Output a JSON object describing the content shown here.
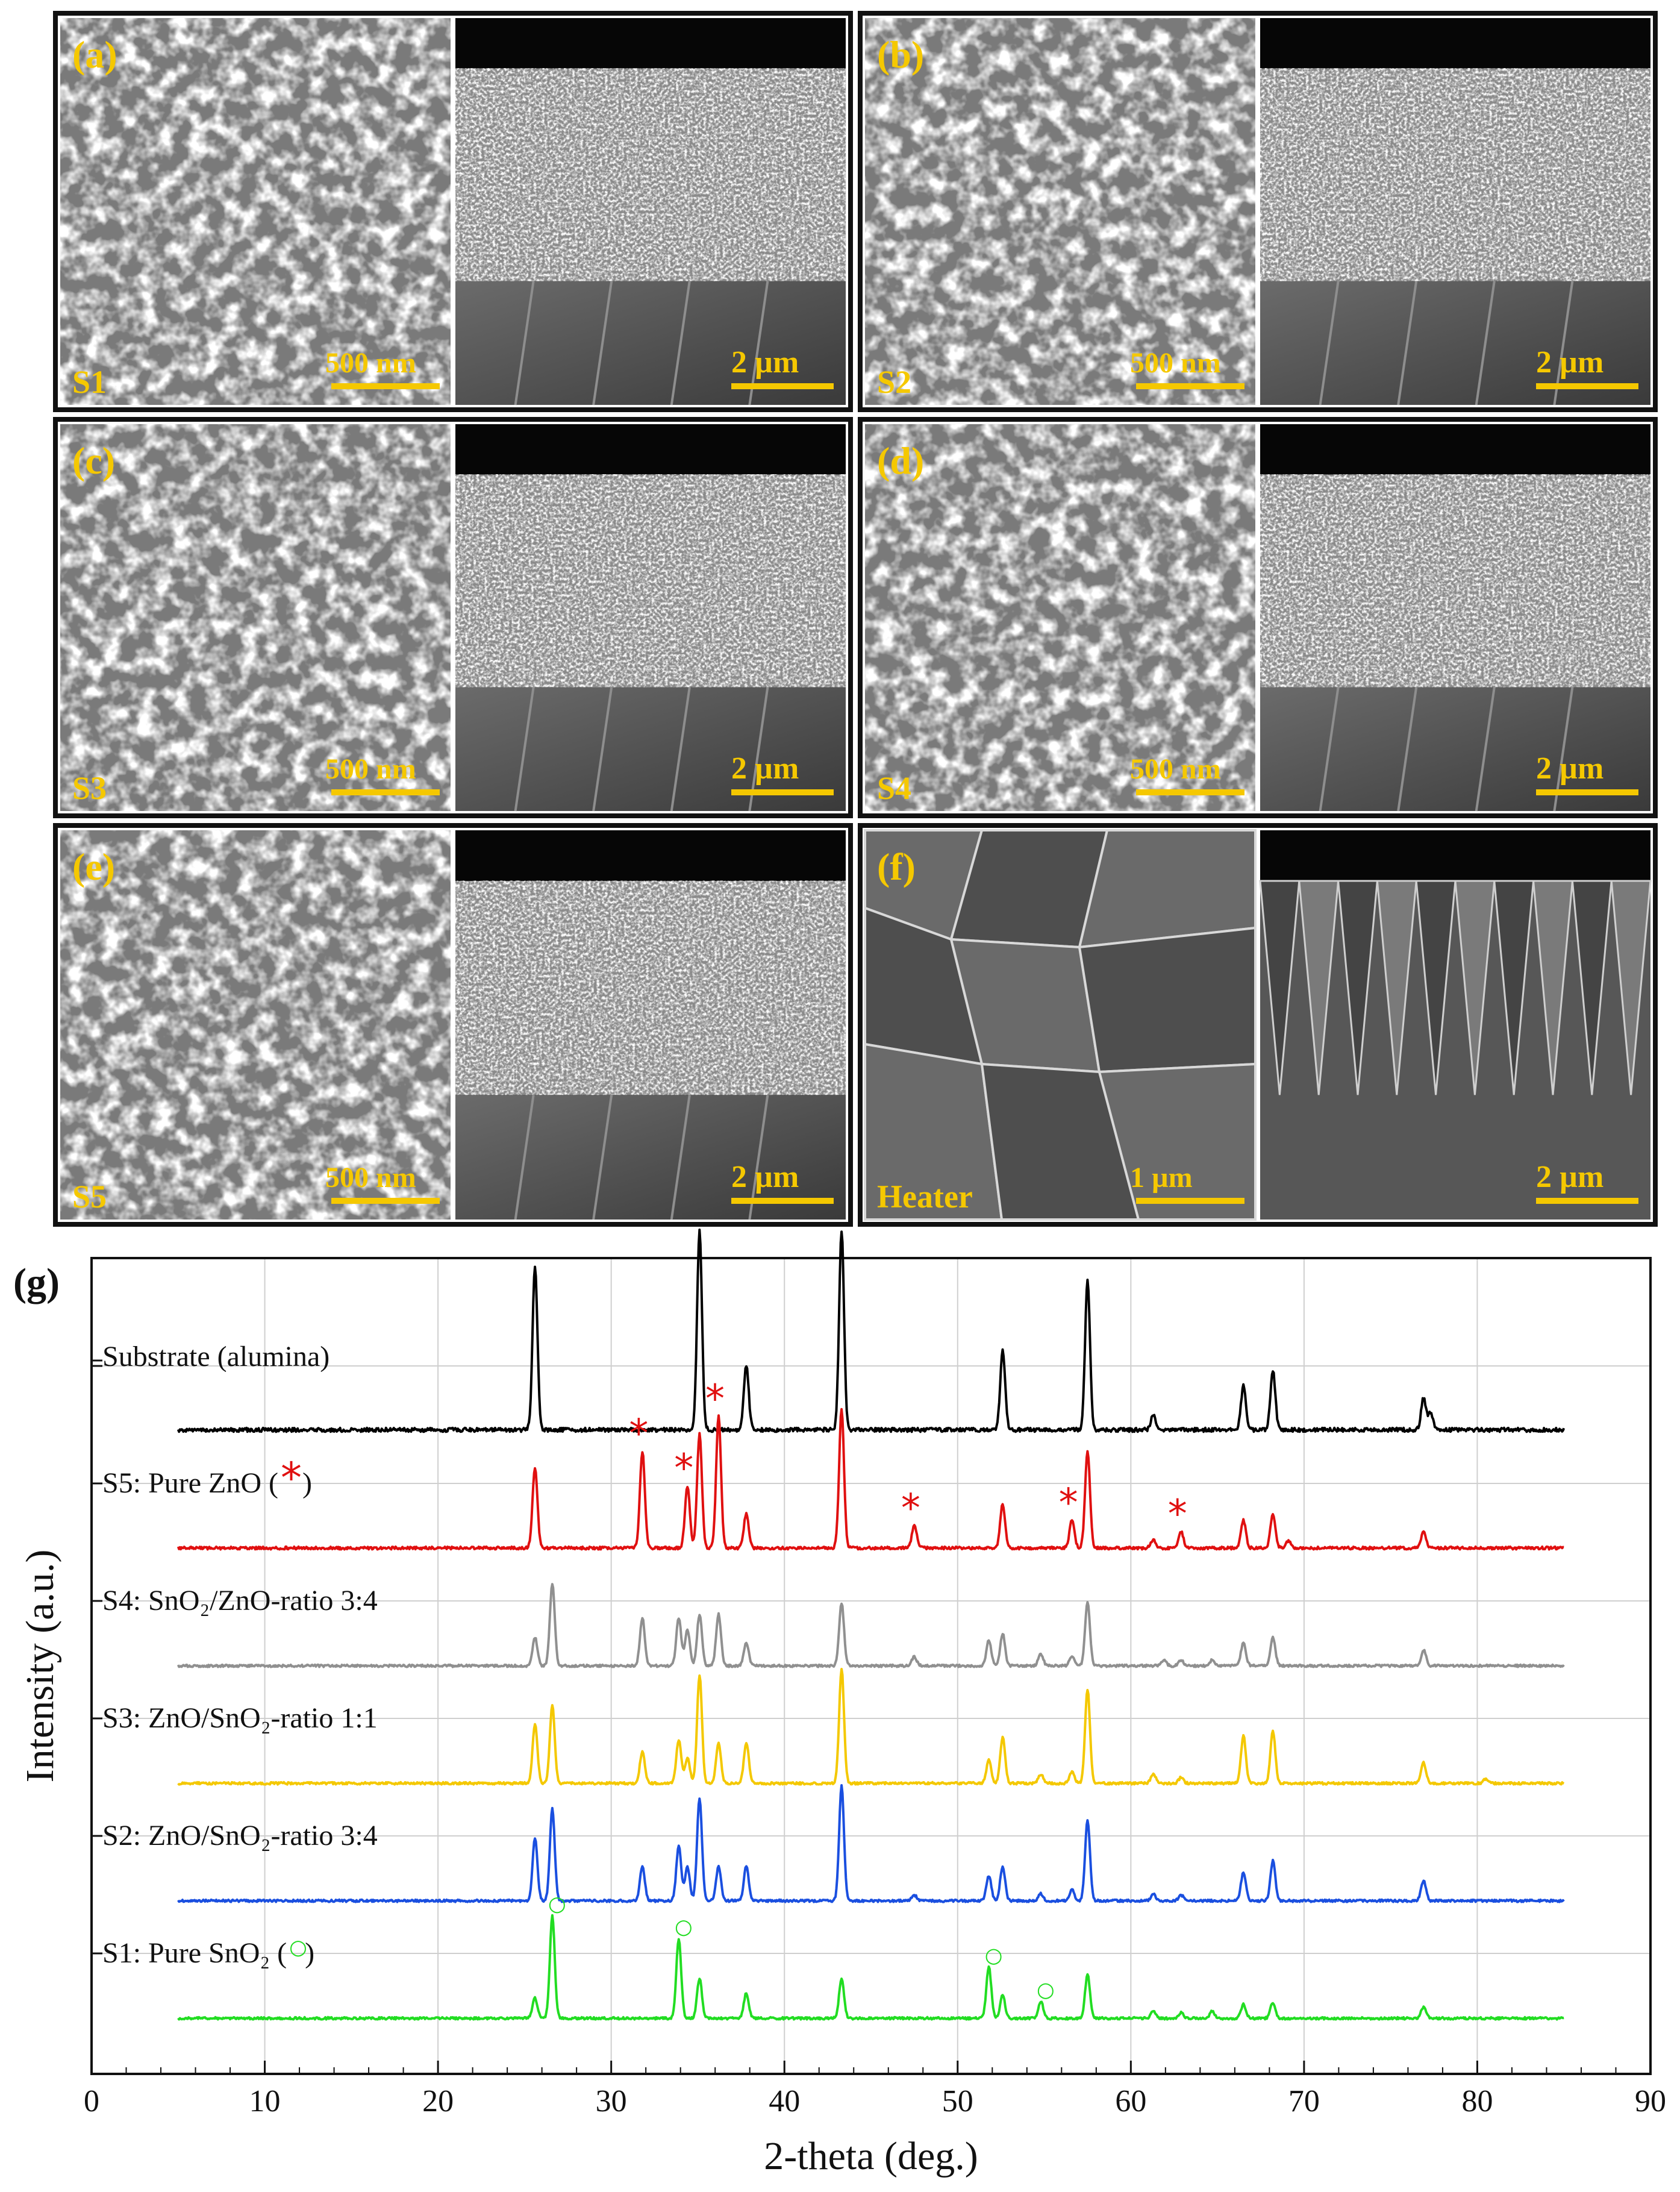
{
  "panels": [
    {
      "id": "a",
      "label": "(a)",
      "sample": "S1",
      "scale_left": "500 nm",
      "scale_right": "2 µm"
    },
    {
      "id": "b",
      "label": "(b)",
      "sample": "S2",
      "scale_left": "500 nm",
      "scale_right": "2 µm"
    },
    {
      "id": "c",
      "label": "(c)",
      "sample": "S3",
      "scale_left": "500 nm",
      "scale_right": "2 µm"
    },
    {
      "id": "d",
      "label": "(d)",
      "sample": "S4",
      "scale_left": "500 nm",
      "scale_right": "2 µm"
    },
    {
      "id": "e",
      "label": "(e)",
      "sample": "S5",
      "scale_left": "500 nm",
      "scale_right": "2 µm"
    },
    {
      "id": "f",
      "label": "(f)",
      "sample": "Heater",
      "scale_left": "1 µm",
      "scale_right": "2 µm"
    }
  ],
  "colors": {
    "panel_label": "#f5c800",
    "substrate": "#000000",
    "S5": "#e01010",
    "S4": "#909090",
    "S3": "#f4c800",
    "S2": "#1a4fe0",
    "S1": "#22dd22"
  },
  "chart_data": {
    "type": "line",
    "panel_label": "(g)",
    "xlabel": "2-theta (deg.)",
    "ylabel": "Intensity (a.u.)",
    "xlim": [
      0,
      90
    ],
    "xticks": [
      0,
      10,
      20,
      30,
      40,
      50,
      60,
      70,
      80,
      90
    ],
    "grid": true,
    "series": [
      {
        "name": "Substrate (alumina)",
        "color": "#000000",
        "peaks": [
          [
            25.6,
            0.82
          ],
          [
            35.1,
            1.0
          ],
          [
            37.8,
            0.32
          ],
          [
            43.3,
            1.0
          ],
          [
            52.6,
            0.4
          ],
          [
            57.5,
            0.75
          ],
          [
            61.3,
            0.08
          ],
          [
            66.5,
            0.22
          ],
          [
            68.2,
            0.3
          ],
          [
            76.9,
            0.16
          ],
          [
            77.3,
            0.08
          ]
        ]
      },
      {
        "name": "S5: Pure ZnO (",
        "marker": "*",
        "color": "#e01010",
        "peaks": [
          [
            25.6,
            0.58
          ],
          [
            31.8,
            0.7
          ],
          [
            34.4,
            0.45
          ],
          [
            35.1,
            0.82
          ],
          [
            36.2,
            0.95
          ],
          [
            37.8,
            0.25
          ],
          [
            43.3,
            1.0
          ],
          [
            47.5,
            0.16
          ],
          [
            52.6,
            0.32
          ],
          [
            56.6,
            0.2
          ],
          [
            57.5,
            0.7
          ],
          [
            61.3,
            0.06
          ],
          [
            62.9,
            0.12
          ],
          [
            66.5,
            0.2
          ],
          [
            68.2,
            0.25
          ],
          [
            69.1,
            0.05
          ],
          [
            76.9,
            0.12
          ]
        ]
      },
      {
        "name": "S4: SnO₂/ZnO-ratio 3:4",
        "color": "#909090",
        "peaks": [
          [
            25.6,
            0.25
          ],
          [
            26.6,
            0.72
          ],
          [
            31.8,
            0.42
          ],
          [
            33.9,
            0.42
          ],
          [
            34.4,
            0.32
          ],
          [
            35.1,
            0.45
          ],
          [
            36.2,
            0.45
          ],
          [
            37.8,
            0.2
          ],
          [
            43.3,
            0.55
          ],
          [
            47.5,
            0.08
          ],
          [
            51.8,
            0.22
          ],
          [
            52.6,
            0.28
          ],
          [
            54.8,
            0.1
          ],
          [
            56.6,
            0.08
          ],
          [
            57.5,
            0.55
          ],
          [
            61.9,
            0.05
          ],
          [
            62.9,
            0.05
          ],
          [
            64.7,
            0.05
          ],
          [
            66.5,
            0.2
          ],
          [
            68.2,
            0.25
          ],
          [
            76.9,
            0.14
          ]
        ]
      },
      {
        "name": "S3: ZnO/SnO₂-ratio 1:1",
        "color": "#f4c800",
        "peaks": [
          [
            25.6,
            0.52
          ],
          [
            26.6,
            0.68
          ],
          [
            31.8,
            0.28
          ],
          [
            33.9,
            0.38
          ],
          [
            34.4,
            0.22
          ],
          [
            35.1,
            0.95
          ],
          [
            36.2,
            0.35
          ],
          [
            37.8,
            0.36
          ],
          [
            43.3,
            1.0
          ],
          [
            51.8,
            0.2
          ],
          [
            52.6,
            0.4
          ],
          [
            54.8,
            0.08
          ],
          [
            56.6,
            0.1
          ],
          [
            57.5,
            0.82
          ],
          [
            61.3,
            0.08
          ],
          [
            62.9,
            0.05
          ],
          [
            66.5,
            0.42
          ],
          [
            68.2,
            0.46
          ],
          [
            76.9,
            0.18
          ],
          [
            80.5,
            0.04
          ]
        ]
      },
      {
        "name": "S2: ZnO/SnO₂-ratio 3:4",
        "color": "#1a4fe0",
        "peaks": [
          [
            25.6,
            0.55
          ],
          [
            26.6,
            0.8
          ],
          [
            31.8,
            0.3
          ],
          [
            33.9,
            0.48
          ],
          [
            34.4,
            0.3
          ],
          [
            35.1,
            0.9
          ],
          [
            36.2,
            0.3
          ],
          [
            37.8,
            0.3
          ],
          [
            43.3,
            1.0
          ],
          [
            47.5,
            0.05
          ],
          [
            51.8,
            0.22
          ],
          [
            52.6,
            0.3
          ],
          [
            54.8,
            0.06
          ],
          [
            56.6,
            0.1
          ],
          [
            57.5,
            0.7
          ],
          [
            61.3,
            0.06
          ],
          [
            62.9,
            0.05
          ],
          [
            66.5,
            0.25
          ],
          [
            68.2,
            0.35
          ],
          [
            76.9,
            0.18
          ]
        ]
      },
      {
        "name": "S1: Pure SnO₂ (",
        "marker": "○",
        "color": "#22dd22",
        "peaks": [
          [
            25.6,
            0.18
          ],
          [
            26.6,
            0.9
          ],
          [
            33.9,
            0.7
          ],
          [
            35.1,
            0.35
          ],
          [
            37.8,
            0.22
          ],
          [
            43.3,
            0.35
          ],
          [
            51.8,
            0.45
          ],
          [
            52.6,
            0.2
          ],
          [
            54.8,
            0.15
          ],
          [
            57.5,
            0.38
          ],
          [
            61.3,
            0.06
          ],
          [
            62.9,
            0.05
          ],
          [
            64.7,
            0.06
          ],
          [
            66.5,
            0.12
          ],
          [
            68.2,
            0.14
          ],
          [
            76.9,
            0.1
          ]
        ]
      }
    ],
    "markers": [
      {
        "series": "S5",
        "symbol": "*",
        "x": [
          31.8,
          34.4,
          36.2,
          47.5,
          56.6,
          62.9
        ]
      },
      {
        "series": "S1",
        "symbol": "○",
        "x": [
          26.6,
          33.9,
          51.8,
          54.8
        ]
      }
    ]
  }
}
